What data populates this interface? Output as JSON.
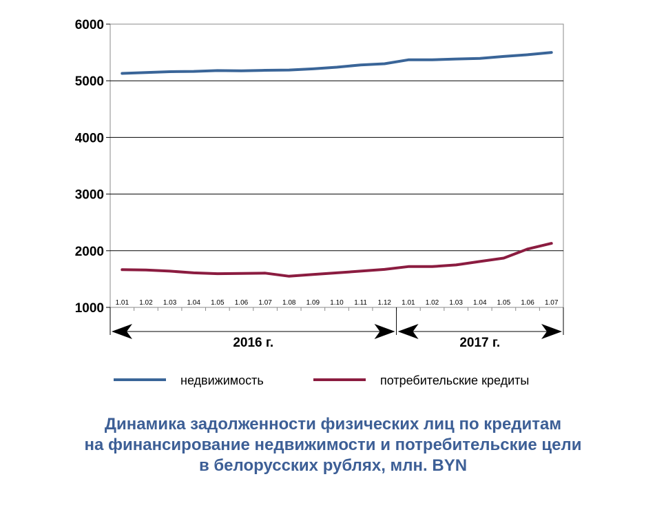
{
  "chart_data": {
    "type": "line",
    "x": [
      "1.01",
      "1.02",
      "1.03",
      "1.04",
      "1.05",
      "1.06",
      "1.07",
      "1.08",
      "1.09",
      "1.10",
      "1.11",
      "1.12",
      "1.01",
      "1.02",
      "1.03",
      "1.04",
      "1.05",
      "1.06",
      "1.07"
    ],
    "year_groups": [
      {
        "label": "2016 г.",
        "count": 12
      },
      {
        "label": "2017 г.",
        "count": 7
      }
    ],
    "series": [
      {
        "name": "недвижимость",
        "color": "#3a6598",
        "values": [
          5130,
          5145,
          5160,
          5165,
          5180,
          5175,
          5185,
          5190,
          5210,
          5240,
          5280,
          5300,
          5370,
          5370,
          5385,
          5395,
          5430,
          5460,
          5500
        ]
      },
      {
        "name": "потребительские кредиты",
        "color": "#8b1c40",
        "values": [
          1665,
          1660,
          1640,
          1610,
          1595,
          1598,
          1605,
          1550,
          1580,
          1610,
          1640,
          1670,
          1720,
          1720,
          1750,
          1810,
          1870,
          2030,
          2130
        ]
      }
    ],
    "ylim": [
      1000,
      6000
    ],
    "yticks": [
      1000,
      2000,
      3000,
      4000,
      5000,
      6000
    ],
    "grid": true,
    "legend_position": "bottom",
    "title_lines": [
      "Динамика задолженности физических лиц по кредитам",
      "на финансирование недвижимости и потребительские цели",
      "в белорусских рублях, млн. BYN"
    ]
  }
}
